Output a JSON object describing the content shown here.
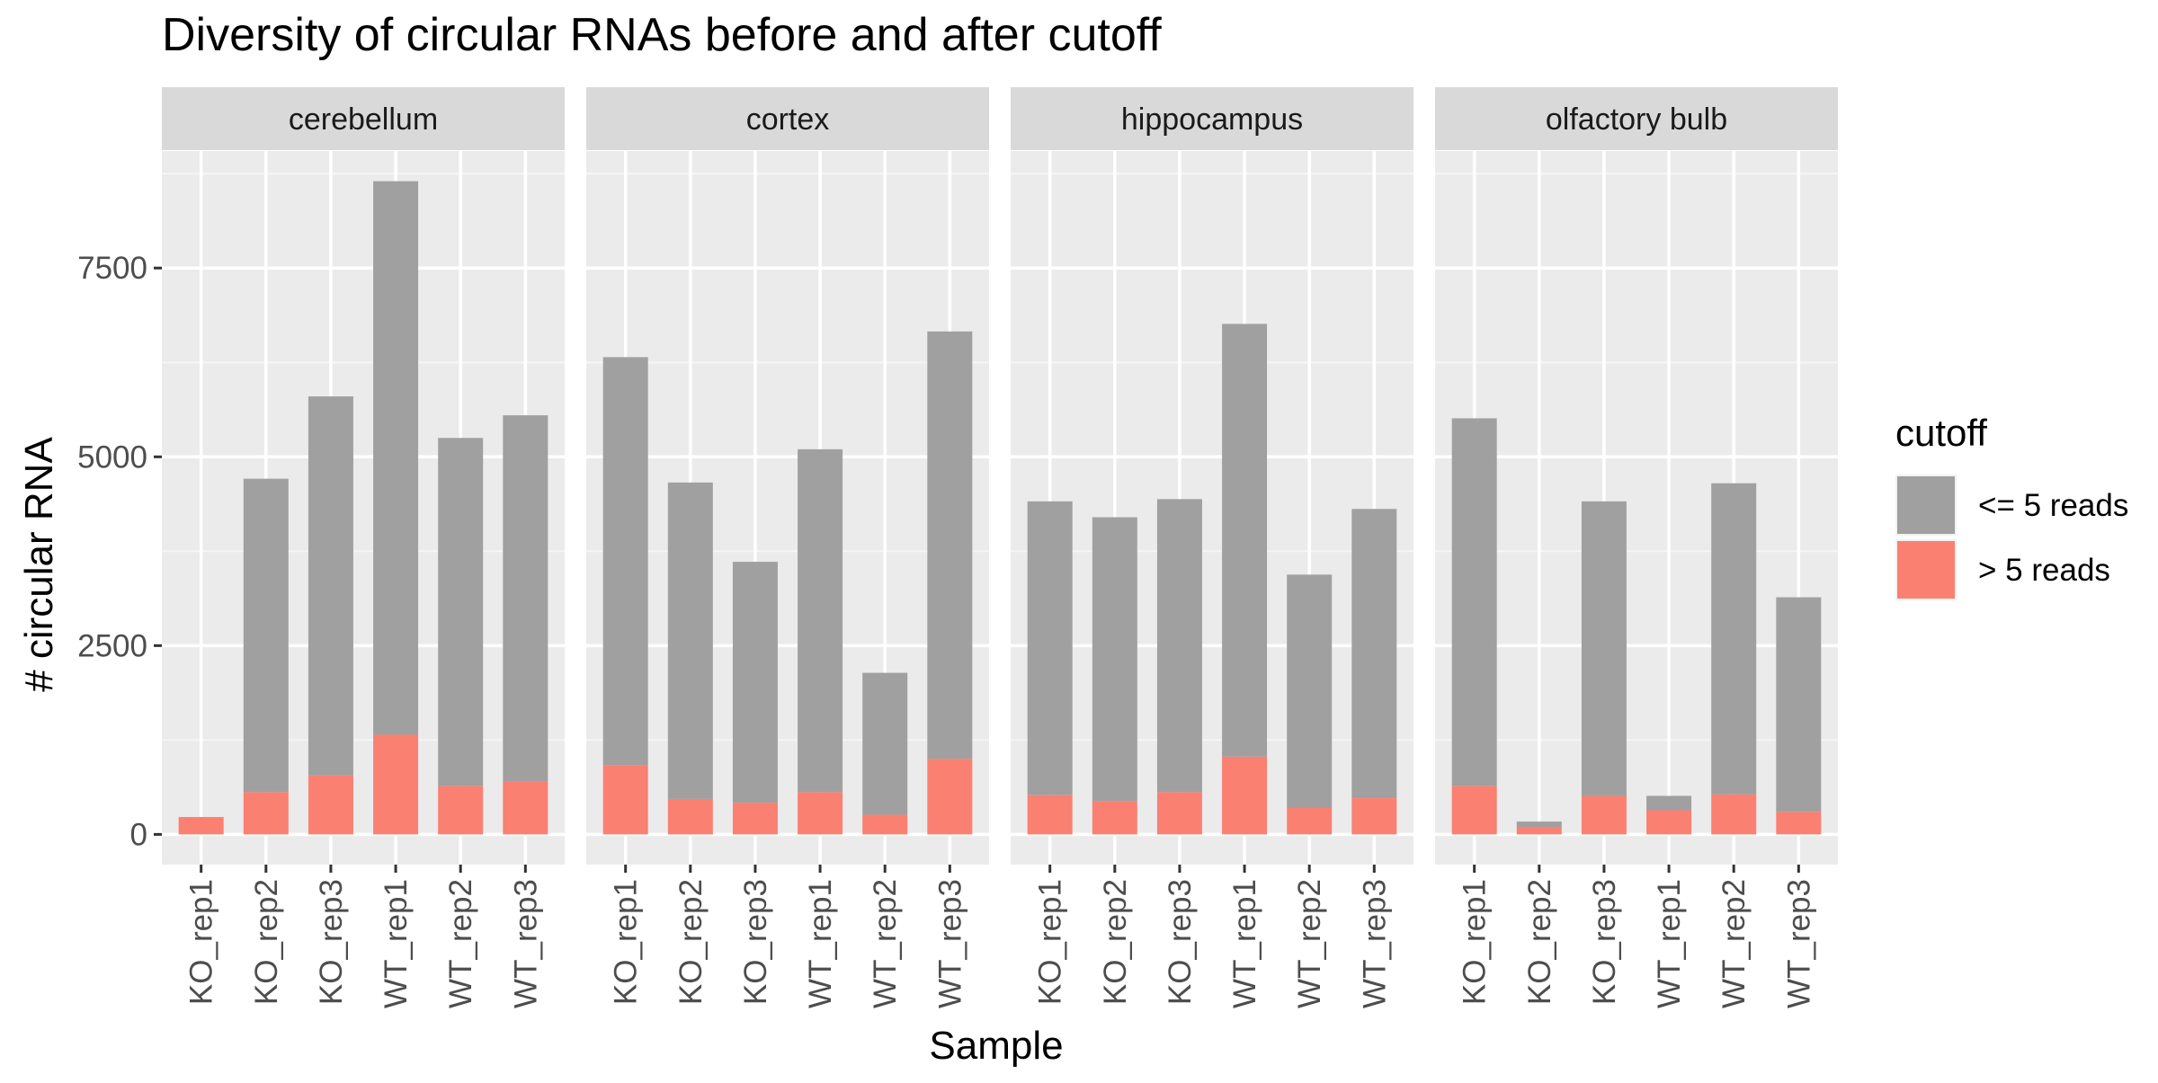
{
  "chart_data": {
    "type": "bar",
    "stacked": true,
    "faceted": true,
    "title": "Diversity of circular RNAs before and after cutoff",
    "xlabel": "Sample",
    "ylabel": "# circular RNA",
    "y_ticks": [
      0,
      2500,
      5000,
      7500
    ],
    "ylim": [
      -400,
      9050
    ],
    "grid": true,
    "categories": [
      "KO_rep1",
      "KO_rep2",
      "KO_rep3",
      "WT_rep1",
      "WT_rep2",
      "WT_rep3"
    ],
    "legend": {
      "title": "cutoff",
      "position": "right",
      "entries": [
        {
          "label": "<= 5 reads",
          "color": "#a0a0a0"
        },
        {
          "label": "> 5 reads",
          "color": "#fa8072"
        }
      ]
    },
    "panels": [
      {
        "label": "cerebellum",
        "series": [
          {
            "name": "> 5 reads",
            "values": [
              230,
              560,
              780,
              1320,
              640,
              700
            ]
          },
          {
            "name": "<= 5 reads",
            "values": [
              0,
              4150,
              5020,
              7330,
              4610,
              4850
            ]
          }
        ]
      },
      {
        "label": "cortex",
        "series": [
          {
            "name": "> 5 reads",
            "values": [
              920,
              470,
              420,
              560,
              260,
              1000
            ]
          },
          {
            "name": "<= 5 reads",
            "values": [
              5400,
              4190,
              3190,
              4540,
              1880,
              5660
            ]
          }
        ]
      },
      {
        "label": "hippocampus",
        "series": [
          {
            "name": "> 5 reads",
            "values": [
              520,
              440,
              560,
              1030,
              350,
              480
            ]
          },
          {
            "name": "<= 5 reads",
            "values": [
              3890,
              3760,
              3880,
              5730,
              3090,
              3830
            ]
          }
        ]
      },
      {
        "label": "olfactory bulb",
        "series": [
          {
            "name": "> 5 reads",
            "values": [
              640,
              100,
              510,
              320,
              530,
              300
            ]
          },
          {
            "name": "<= 5 reads",
            "values": [
              4870,
              70,
              3900,
              190,
              4120,
              2840
            ]
          }
        ]
      }
    ]
  }
}
